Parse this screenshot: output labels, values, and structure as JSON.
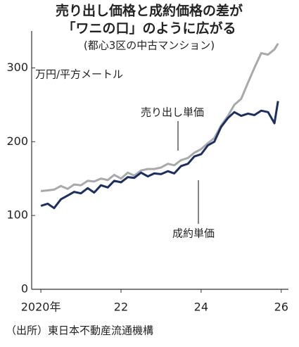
{
  "chart_data": {
    "type": "line",
    "title": [
      "売り出し価格と成約価格の差が",
      "「ワニの口」のように広がる"
    ],
    "subtitle": "(都心3区の中古マンション)",
    "y_label": "万円/平方メートル",
    "source": "（出所）東日本不動産流通機構",
    "x": [
      2020.0,
      2020.17,
      2020.33,
      2020.5,
      2020.67,
      2020.83,
      2021.0,
      2021.17,
      2021.33,
      2021.5,
      2021.67,
      2021.83,
      2022.0,
      2022.17,
      2022.33,
      2022.5,
      2022.67,
      2022.83,
      2023.0,
      2023.17,
      2023.33,
      2023.5,
      2023.67,
      2023.83,
      2024.0,
      2024.17,
      2024.33,
      2024.5,
      2024.67,
      2024.83,
      2025.0,
      2025.17,
      2025.33,
      2025.5,
      2025.67,
      2025.83,
      2025.92
    ],
    "series": [
      {
        "name": "売り出し単価",
        "color": "#a7a9ac",
        "values": [
          133,
          134,
          135,
          140,
          136,
          142,
          141,
          147,
          146,
          150,
          148,
          155,
          150,
          158,
          154,
          161,
          163,
          163,
          165,
          170,
          168,
          175,
          178,
          185,
          190,
          198,
          205,
          222,
          235,
          250,
          258,
          280,
          300,
          320,
          318,
          325,
          333
        ]
      },
      {
        "name": "成約単価",
        "color": "#1c2f5f",
        "values": [
          113,
          116,
          110,
          122,
          127,
          132,
          130,
          137,
          131,
          141,
          138,
          147,
          145,
          152,
          151,
          158,
          153,
          157,
          156,
          160,
          157,
          167,
          170,
          180,
          183,
          195,
          200,
          220,
          232,
          240,
          235,
          238,
          236,
          242,
          240,
          225,
          255
        ]
      }
    ],
    "xlim": [
      2019.77,
      2026.18
    ],
    "xticks": [
      {
        "value": 2020,
        "label": "2020年"
      },
      22,
      24,
      26
    ],
    "ylim": [
      0,
      350
    ],
    "yticks": [
      0,
      100,
      200,
      300
    ]
  }
}
